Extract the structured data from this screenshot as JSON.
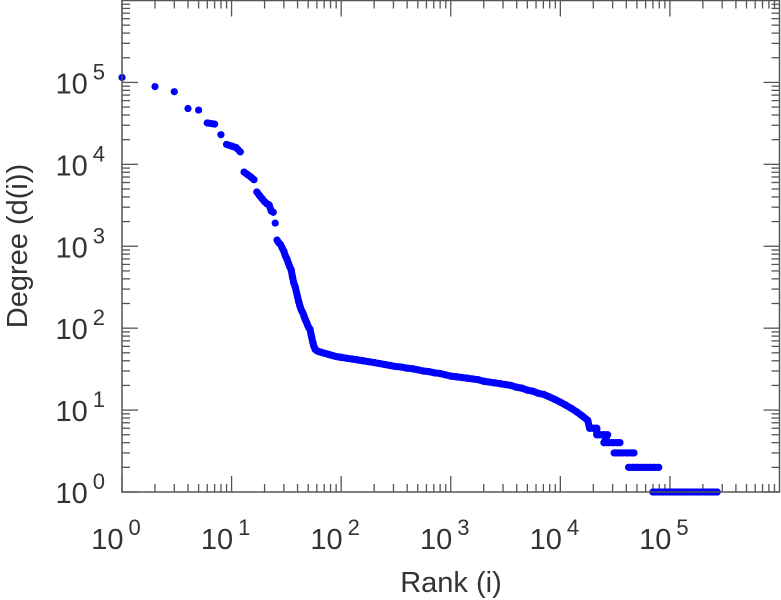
{
  "chart_data": {
    "type": "scatter",
    "title": "",
    "xlabel": "Rank (i)",
    "ylabel": "Degree (d(i))",
    "xscale": "log",
    "yscale": "log",
    "xlim": [
      1,
      1000000
    ],
    "ylim": [
      1,
      1000000
    ],
    "x_ticks": [
      {
        "base": "10",
        "exp": "0"
      },
      {
        "base": "10",
        "exp": "1"
      },
      {
        "base": "10",
        "exp": "2"
      },
      {
        "base": "10",
        "exp": "3"
      },
      {
        "base": "10",
        "exp": "4"
      },
      {
        "base": "10",
        "exp": "5"
      }
    ],
    "y_ticks": [
      {
        "base": "10",
        "exp": "0"
      },
      {
        "base": "10",
        "exp": "1"
      },
      {
        "base": "10",
        "exp": "2"
      },
      {
        "base": "10",
        "exp": "3"
      },
      {
        "base": "10",
        "exp": "4"
      },
      {
        "base": "10",
        "exp": "5"
      }
    ],
    "grid": false,
    "series": [
      {
        "name": "degree",
        "color": "#0000ff",
        "points": [
          [
            1,
            115000
          ],
          [
            2,
            89000
          ],
          [
            3,
            77000
          ],
          [
            4,
            48000
          ],
          [
            5,
            46000
          ],
          [
            6,
            32000
          ],
          [
            7,
            31000
          ],
          [
            8,
            23000
          ],
          [
            9,
            17500
          ],
          [
            10,
            16700
          ],
          [
            11,
            16000
          ],
          [
            12,
            14200
          ],
          [
            13,
            8050
          ],
          [
            14,
            7500
          ],
          [
            15,
            7000
          ],
          [
            16,
            6500
          ],
          [
            17,
            4600
          ],
          [
            18,
            4150
          ],
          [
            19,
            3800
          ],
          [
            20,
            3500
          ],
          [
            21,
            3300
          ],
          [
            22,
            3200
          ],
          [
            23,
            2700
          ],
          [
            24,
            2600
          ],
          [
            25,
            1920
          ],
          [
            26,
            1190
          ],
          [
            27,
            1100
          ],
          [
            28,
            1050
          ],
          [
            29,
            950
          ],
          [
            30,
            870
          ],
          [
            31,
            760
          ],
          [
            32,
            700
          ],
          [
            33,
            620
          ],
          [
            34,
            560
          ],
          [
            35,
            515
          ],
          [
            36,
            420
          ],
          [
            37,
            355
          ],
          [
            38,
            320
          ],
          [
            39,
            280
          ],
          [
            40,
            240
          ],
          [
            41,
            210
          ],
          [
            42,
            187
          ],
          [
            43,
            170
          ],
          [
            44,
            160
          ],
          [
            45,
            150
          ],
          [
            46,
            138
          ],
          [
            47,
            128
          ],
          [
            48,
            120
          ],
          [
            49,
            112
          ],
          [
            50,
            105
          ],
          [
            51,
            100
          ],
          [
            52,
            97
          ],
          [
            53,
            85
          ],
          [
            54,
            76
          ],
          [
            55,
            68
          ],
          [
            56,
            62
          ],
          [
            57,
            58
          ],
          [
            58,
            55
          ],
          [
            60,
            53
          ],
          [
            62,
            52
          ],
          [
            65,
            51
          ],
          [
            68,
            50
          ],
          [
            72,
            49
          ],
          [
            76,
            48
          ],
          [
            80,
            47
          ],
          [
            85,
            46
          ],
          [
            90,
            45
          ],
          [
            95,
            44.5
          ],
          [
            100,
            44
          ],
          [
            112,
            43
          ],
          [
            126,
            42
          ],
          [
            141,
            41
          ],
          [
            158,
            40
          ],
          [
            178,
            39
          ],
          [
            200,
            38
          ],
          [
            224,
            37
          ],
          [
            251,
            36
          ],
          [
            282,
            35
          ],
          [
            316,
            34
          ],
          [
            355,
            33.5
          ],
          [
            398,
            32.5
          ],
          [
            447,
            32
          ],
          [
            501,
            31
          ],
          [
            562,
            30
          ],
          [
            631,
            29.5
          ],
          [
            708,
            28.5
          ],
          [
            794,
            28
          ],
          [
            891,
            27
          ],
          [
            1000,
            26
          ],
          [
            1122,
            25.5
          ],
          [
            1259,
            25
          ],
          [
            1413,
            24.5
          ],
          [
            1585,
            24
          ],
          [
            1778,
            23.5
          ],
          [
            1995,
            22.5
          ],
          [
            2239,
            22
          ],
          [
            2512,
            21.5
          ],
          [
            2818,
            21
          ],
          [
            3162,
            20.5
          ],
          [
            3548,
            20
          ],
          [
            3981,
            19
          ],
          [
            4467,
            18.5
          ],
          [
            5012,
            17.5
          ],
          [
            5623,
            17
          ],
          [
            6310,
            16
          ],
          [
            7079,
            15.5
          ],
          [
            7943,
            14.5
          ],
          [
            8913,
            13.5
          ],
          [
            10000,
            12.5
          ],
          [
            11220,
            11.5
          ],
          [
            12589,
            10.5
          ],
          [
            14125,
            9.5
          ],
          [
            15849,
            8.5
          ],
          [
            17783,
            7.5
          ],
          [
            18500,
            6
          ],
          [
            20000,
            6
          ],
          [
            21500,
            6
          ],
          [
            21500,
            5
          ],
          [
            23000,
            5
          ],
          [
            25000,
            5
          ],
          [
            27000,
            5
          ],
          [
            25000,
            4
          ],
          [
            27500,
            4
          ],
          [
            30000,
            4
          ],
          [
            33000,
            4
          ],
          [
            35000,
            4
          ],
          [
            31000,
            3
          ],
          [
            34000,
            3
          ],
          [
            37000,
            3
          ],
          [
            41000,
            3
          ],
          [
            45000,
            3
          ],
          [
            47000,
            3
          ],
          [
            42000,
            2
          ],
          [
            46000,
            2
          ],
          [
            50000,
            2
          ],
          [
            55000,
            2
          ],
          [
            60000,
            2
          ],
          [
            66000,
            2
          ],
          [
            72000,
            2
          ],
          [
            79000,
            2
          ],
          [
            70000,
            1
          ],
          [
            77000,
            1
          ],
          [
            85000,
            1
          ],
          [
            93000,
            1
          ],
          [
            100000,
            1
          ],
          [
            110000,
            1
          ],
          [
            120000,
            1
          ],
          [
            132000,
            1
          ],
          [
            145000,
            1
          ],
          [
            160000,
            1
          ],
          [
            175000,
            1
          ],
          [
            190000,
            1
          ],
          [
            210000,
            1
          ],
          [
            230000,
            1
          ],
          [
            250000,
            1
          ],
          [
            270000,
            1
          ]
        ]
      }
    ]
  }
}
